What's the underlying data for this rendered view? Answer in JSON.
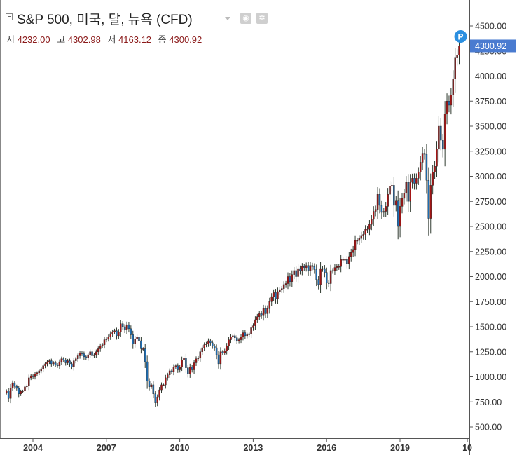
{
  "header": {
    "title": "S&P 500, 미국, 달, 뉴욕 (CFD)",
    "ohlc": [
      {
        "label": "시",
        "value": "4232.00"
      },
      {
        "label": "고",
        "value": "4302.98"
      },
      {
        "label": "저",
        "value": "4163.12"
      },
      {
        "label": "종",
        "value": "4300.92"
      }
    ],
    "buttons": [
      {
        "icon": "eye-icon",
        "glyph": "◉"
      },
      {
        "icon": "gear-icon",
        "glyph": "✲"
      }
    ]
  },
  "colors": {
    "up": "#a31515",
    "down": "#1d6fb5",
    "wick": "#2f3a2f",
    "last_price_bg": "#4a7bd0",
    "marker_bg": "#2b8fe0",
    "axis_text": "#333333",
    "grid": "#e8e8e8"
  },
  "chart_data": {
    "type": "candlestick",
    "interval": "monthly",
    "x_tick_labels": [
      "2004",
      "2007",
      "2010",
      "2013",
      "2016",
      "2019",
      "10"
    ],
    "x_tick_dates": [
      2004,
      2007,
      2010,
      2013,
      2016,
      2019,
      2021.75
    ],
    "y_tick_labels": [
      "500.00",
      "750.00",
      "1000.00",
      "1250.00",
      "1500.00",
      "1750.00",
      "2000.00",
      "2250.00",
      "2500.00",
      "2750.00",
      "3000.00",
      "3250.00",
      "3500.00",
      "3750.00",
      "4000.00",
      "4250.00",
      "4500.00"
    ],
    "ylim": [
      450,
      4600
    ],
    "x_range": [
      2002.92,
      2021.95
    ],
    "last_price": {
      "value": 4300.92,
      "label": "4300.92"
    },
    "marker": {
      "label": "P",
      "date": 2021.42
    },
    "start_date": 2002.92,
    "step_years": 0.08333,
    "closes": [
      860,
      785,
      890,
      940,
      905,
      885,
      830,
      855,
      860,
      900,
      910,
      990,
      1010,
      1000,
      1030,
      1040,
      1060,
      1080,
      1110,
      1130,
      1150,
      1160,
      1130,
      1140,
      1120,
      1110,
      1150,
      1180,
      1170,
      1140,
      1160,
      1130,
      1100,
      1160,
      1180,
      1210,
      1240,
      1230,
      1200,
      1190,
      1220,
      1250,
      1210,
      1220,
      1250,
      1280,
      1310,
      1320,
      1370,
      1380,
      1400,
      1430,
      1450,
      1460,
      1410,
      1450,
      1530,
      1500,
      1470,
      1520,
      1480,
      1420,
      1330,
      1380,
      1400,
      1360,
      1280,
      1280,
      1150,
      960,
      900,
      920,
      830,
      740,
      800,
      870,
      920,
      920,
      990,
      1020,
      1060,
      1050,
      1100,
      1110,
      1070,
      1100,
      1170,
      1190,
      1090,
      1030,
      1100,
      1070,
      1140,
      1180,
      1190,
      1250,
      1290,
      1320,
      1330,
      1360,
      1340,
      1310,
      1290,
      1220,
      1130,
      1250,
      1240,
      1260,
      1310,
      1370,
      1400,
      1410,
      1390,
      1360,
      1370,
      1400,
      1440,
      1410,
      1420,
      1430,
      1490,
      1510,
      1570,
      1600,
      1630,
      1610,
      1680,
      1630,
      1680,
      1750,
      1800,
      1840,
      1780,
      1850,
      1870,
      1880,
      1920,
      1930,
      2000,
      1950,
      2020,
      2060,
      2000,
      2080,
      2060,
      2100,
      2090,
      2110,
      2060,
      2110,
      2100,
      2070,
      1970,
      1920,
      2080,
      2080,
      2040,
      1940,
      1930,
      2060,
      2060,
      2090,
      2100,
      2100,
      2170,
      2170,
      2170,
      2130,
      2200,
      2240,
      2270,
      2360,
      2360,
      2380,
      2410,
      2420,
      2470,
      2470,
      2520,
      2570,
      2650,
      2670,
      2820,
      2710,
      2640,
      2650,
      2700,
      2820,
      2900,
      2910,
      2710,
      2760,
      2500,
      2700,
      2780,
      2830,
      2940,
      2750,
      2940,
      2980,
      2930,
      2980,
      3040,
      3140,
      3230,
      3220,
      2960,
      2580,
      2910,
      3040,
      3100,
      3270,
      3500,
      3360,
      3270,
      3620,
      3750,
      3710,
      3810,
      3970,
      4180,
      4210,
      4300
    ]
  }
}
